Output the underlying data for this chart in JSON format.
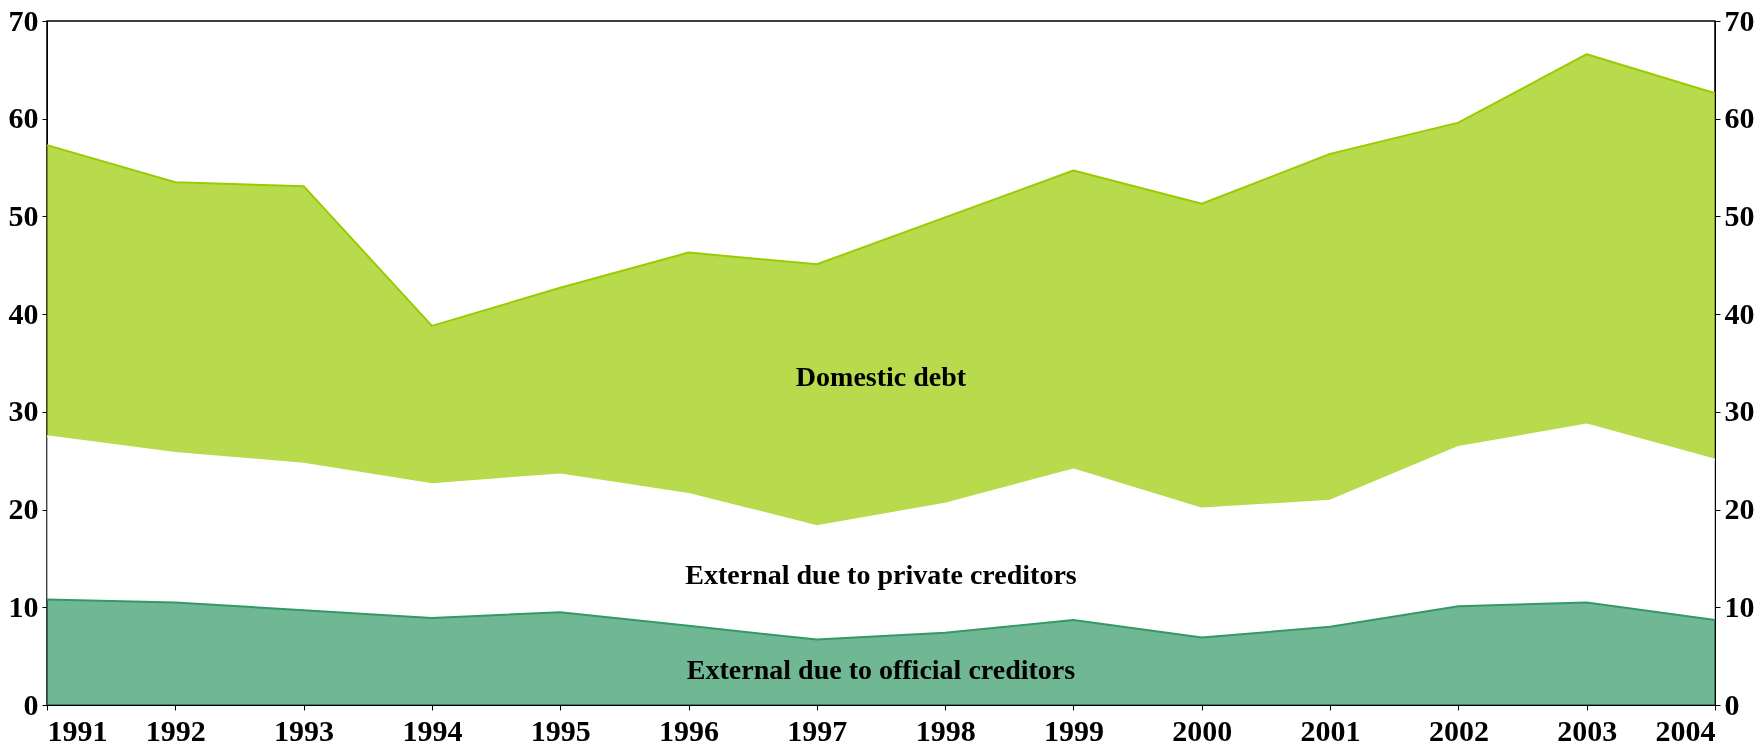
{
  "chart_data": {
    "type": "area",
    "stacked": true,
    "x": [
      1991,
      1992,
      1993,
      1994,
      1995,
      1996,
      1997,
      1998,
      1999,
      2000,
      2001,
      2002,
      2003,
      2004
    ],
    "series": [
      {
        "name": "External due to official creditors",
        "color": "#339966",
        "values": [
          10.8,
          10.5,
          9.7,
          8.9,
          9.5,
          8.1,
          6.7,
          7.4,
          8.7,
          6.9,
          8.0,
          10.1,
          10.5,
          8.7
        ]
      },
      {
        "name": "External due to private creditors",
        "color": "#ffffff",
        "values": [
          16.7,
          15.3,
          15.0,
          13.7,
          14.1,
          13.5,
          11.6,
          13.2,
          15.4,
          13.2,
          12.9,
          16.3,
          18.2,
          16.4
        ]
      },
      {
        "name": "Domestic debt",
        "color": "#99cc00",
        "values": [
          29.8,
          27.7,
          28.4,
          16.2,
          19.1,
          24.7,
          26.8,
          29.3,
          30.6,
          31.2,
          35.5,
          33.2,
          37.9,
          37.5
        ]
      }
    ],
    "xlim": [
      1991,
      2004
    ],
    "xticks": [
      1991,
      1992,
      1993,
      1994,
      1995,
      1996,
      1997,
      1998,
      1999,
      2000,
      2001,
      2002,
      2003,
      2004
    ],
    "ylim": [
      0,
      70
    ],
    "yticks": [
      0,
      10,
      20,
      30,
      40,
      50,
      60,
      70
    ],
    "y2lim": [
      0,
      70
    ],
    "y2ticks": [
      0,
      10,
      20,
      30,
      40,
      50,
      60,
      70
    ],
    "grid": false,
    "legend": false
  }
}
